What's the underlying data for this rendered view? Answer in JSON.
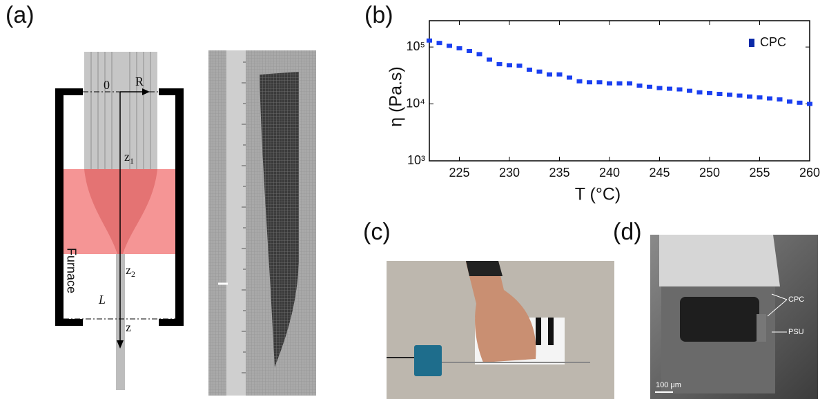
{
  "panels": {
    "a": "(a)",
    "b": "(b)",
    "c": "(c)",
    "d": "(d)"
  },
  "diagram": {
    "origin": "0",
    "radius": "R",
    "z1": {
      "base": "z",
      "sub": "1"
    },
    "z2": {
      "base": "z",
      "sub": "2"
    },
    "furnace": "Furnace",
    "length": "L",
    "axis": "z"
  },
  "sem": {
    "cpc": "CPC",
    "psu": "PSU",
    "scale": "100 μm"
  },
  "chart_data": {
    "type": "scatter",
    "xlabel": "T (°C)",
    "ylabel": "η  (Pa.s)",
    "x": [
      222,
      223,
      224,
      225,
      226,
      227,
      228,
      229,
      230,
      231,
      232,
      233,
      234,
      235,
      236,
      237,
      238,
      239,
      240,
      241,
      242,
      243,
      244,
      245,
      246,
      247,
      248,
      249,
      250,
      251,
      252,
      253,
      254,
      255,
      256,
      257,
      258,
      259,
      260
    ],
    "series": [
      {
        "name": "CPC",
        "color": "#1a3ff0",
        "legend_color": "#0b2aa8",
        "values": [
          130000,
          118000,
          105000,
          95000,
          85000,
          75000,
          60000,
          50000,
          48000,
          47000,
          40000,
          37000,
          33000,
          33000,
          29000,
          25000,
          24000,
          24000,
          23000,
          23000,
          23000,
          21000,
          20000,
          19000,
          18500,
          18000,
          17000,
          16000,
          15500,
          15000,
          14500,
          14000,
          13500,
          13000,
          12500,
          12000,
          11000,
          10500,
          10000
        ]
      }
    ],
    "xlim": [
      222,
      260
    ],
    "xticks": [
      225,
      230,
      235,
      240,
      245,
      250,
      255,
      260
    ],
    "ylim": [
      1000,
      290000
    ],
    "yticks": [
      {
        "value": 1000,
        "label": "10³"
      },
      {
        "value": 10000,
        "label": "10⁴"
      },
      {
        "value": 100000,
        "label": "10⁵"
      }
    ],
    "log_y": true,
    "legend": "upper right"
  }
}
